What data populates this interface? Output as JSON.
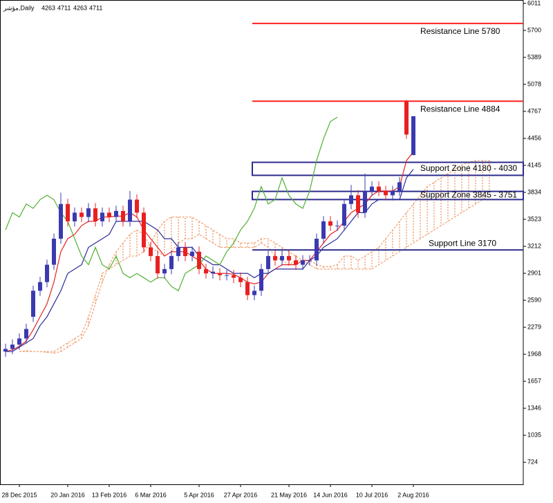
{
  "chart_data": {
    "type": "candlestick",
    "symbol": "مؤشر,Daily",
    "header_ohlc": [
      4263,
      4711,
      4263,
      4711
    ],
    "categories": [
      null,
      null,
      "28 Dec 2015",
      null,
      null,
      null,
      null,
      null,
      null,
      "20 Jan 2016",
      null,
      null,
      null,
      null,
      null,
      "13 Feb 2016",
      null,
      null,
      null,
      null,
      null,
      "6 Mar 2016",
      null,
      null,
      null,
      null,
      null,
      null,
      "5 Apr 2016",
      null,
      null,
      null,
      null,
      null,
      "27 Apr 2016",
      null,
      null,
      null,
      null,
      null,
      null,
      "21 May 2016",
      null,
      null,
      null,
      null,
      null,
      "14 Jun 2016",
      null,
      null,
      null,
      null,
      null,
      "10 Jul 2016",
      null,
      null,
      null,
      null,
      null,
      "2 Aug 2016",
      null,
      null,
      null,
      null,
      null,
      null,
      null,
      null,
      null,
      null,
      null
    ],
    "open": [
      2000,
      2030,
      2080,
      2150,
      2400,
      2700,
      2800,
      3000,
      3300,
      3700,
      3500,
      3600,
      3550,
      3650,
      3500,
      3600,
      3550,
      3620,
      3500,
      3750,
      3600,
      3200,
      3100,
      2900,
      2950,
      3100,
      3200,
      3100,
      3150,
      2950,
      2900,
      2900,
      2880,
      2880,
      2850,
      2800,
      2650,
      2700,
      2950,
      3100,
      3050,
      3100,
      3050,
      3000,
      3050,
      3050,
      3300,
      3500,
      3450,
      3450,
      3700,
      3800,
      3600,
      3850,
      3900,
      3850,
      3800,
      3850,
      4880,
      4263,
      null,
      null,
      null,
      null,
      null,
      null,
      null,
      null,
      null,
      null,
      null
    ],
    "high": [
      2090,
      2140,
      2210,
      2320,
      2760,
      2860,
      3060,
      3360,
      3830,
      3760,
      3660,
      3660,
      3710,
      3710,
      3660,
      3660,
      3680,
      3680,
      3850,
      3810,
      3660,
      3260,
      3160,
      3010,
      3160,
      3260,
      3260,
      3210,
      3210,
      3010,
      2980,
      2960,
      2940,
      2940,
      2910,
      2860,
      2760,
      3010,
      3160,
      3160,
      3160,
      3160,
      3110,
      3110,
      3110,
      3360,
      3560,
      3560,
      3510,
      3760,
      3920,
      3860,
      4050,
      3960,
      3960,
      3910,
      3910,
      4010,
      4900,
      4711,
      null,
      null,
      null,
      null,
      null,
      null,
      null,
      null,
      null,
      null,
      null
    ],
    "low": [
      1940,
      1970,
      2020,
      2090,
      2340,
      2640,
      2740,
      2940,
      3240,
      3440,
      3440,
      3490,
      3490,
      3440,
      3440,
      3490,
      3490,
      3440,
      3440,
      3540,
      3140,
      3040,
      2840,
      2840,
      2890,
      3040,
      3040,
      3040,
      2890,
      2840,
      2840,
      2820,
      2820,
      2790,
      2740,
      2590,
      2590,
      2640,
      2890,
      2990,
      2990,
      2990,
      2940,
      2940,
      2990,
      2990,
      3240,
      3390,
      3390,
      3390,
      3640,
      3540,
      3540,
      3790,
      3790,
      3740,
      3740,
      3790,
      4450,
      4263,
      null,
      null,
      null,
      null,
      null,
      null,
      null,
      null,
      null,
      null,
      null
    ],
    "close": [
      2030,
      2080,
      2150,
      2260,
      2700,
      2800,
      3000,
      3300,
      3700,
      3500,
      3600,
      3550,
      3650,
      3500,
      3600,
      3550,
      3620,
      3500,
      3750,
      3600,
      3200,
      3100,
      2900,
      2950,
      3100,
      3200,
      3100,
      3150,
      2950,
      2900,
      2920,
      2880,
      2880,
      2850,
      2800,
      2650,
      2700,
      2950,
      3100,
      3050,
      3100,
      3050,
      3000,
      3050,
      3050,
      3300,
      3500,
      3450,
      3450,
      3700,
      3800,
      3600,
      3850,
      3900,
      3850,
      3800,
      3850,
      3950,
      4500,
      4711,
      null,
      null,
      null,
      null,
      null,
      null,
      null,
      null,
      null,
      null,
      null
    ],
    "up_color": "#3a3ab0",
    "down_color": "#e82020",
    "lines": [
      {
        "color": "#e82020",
        "values": [
          2000,
          2020,
          2060,
          2120,
          2250,
          2400,
          2550,
          2800,
          3150,
          3300,
          3350,
          3450,
          3500,
          3500,
          3550,
          3550,
          3560,
          3560,
          3600,
          3550,
          3400,
          3300,
          3200,
          3100,
          3150,
          3150,
          3150,
          3100,
          3050,
          2950,
          2900,
          2900,
          2900,
          2890,
          2850,
          2800,
          2780,
          2800,
          2900,
          2950,
          3000,
          3000,
          3000,
          3050,
          3050,
          3150,
          3250,
          3350,
          3400,
          3500,
          3600,
          3650,
          3700,
          3800,
          3850,
          3850,
          3850,
          3900,
          4200,
          4300,
          null,
          null,
          null,
          null,
          null,
          null,
          null,
          null,
          null,
          null,
          null
        ]
      },
      {
        "color": "#2a2a9a",
        "values": [
          2000,
          2000,
          2050,
          2100,
          2150,
          2300,
          2400,
          2550,
          2700,
          2900,
          2950,
          3000,
          3200,
          3250,
          3300,
          3350,
          3500,
          3500,
          3500,
          3500,
          3500,
          3450,
          3400,
          3300,
          3300,
          3200,
          3200,
          3200,
          3100,
          3050,
          3000,
          3000,
          2950,
          2900,
          2900,
          2900,
          2850,
          2900,
          2900,
          2950,
          2950,
          2950,
          2950,
          2950,
          3050,
          3100,
          3200,
          3250,
          3300,
          3400,
          3500,
          3600,
          3600,
          3700,
          3750,
          3750,
          3750,
          3750,
          4000,
          4100,
          null,
          null,
          null,
          null,
          null,
          null,
          null,
          null,
          null,
          null,
          null
        ]
      },
      {
        "color": "#4fb030",
        "values": [
          3400,
          3600,
          3550,
          3700,
          3650,
          3750,
          3800,
          3750,
          3600,
          3500,
          3300,
          3100,
          3000,
          3200,
          3000,
          2950,
          3100,
          2900,
          2850,
          2900,
          2850,
          2800,
          2850,
          2850,
          2750,
          2700,
          2900,
          2950,
          3000,
          3100,
          3050,
          3000,
          3150,
          3250,
          3400,
          3500,
          3650,
          3900,
          3700,
          3750,
          4000,
          3800,
          3700,
          3650,
          3850,
          4200,
          4450,
          4650,
          4700,
          null,
          null,
          null,
          null,
          null,
          null,
          null,
          null,
          null,
          null,
          null,
          null,
          null,
          null,
          null,
          null,
          null,
          null,
          null,
          null,
          null,
          null
        ]
      }
    ],
    "cloud": {
      "color": "#f0a070",
      "span_a": [
        null,
        null,
        2000,
        2010,
        2000,
        2000,
        1990,
        1980,
        2000,
        2050,
        2100,
        2150,
        2300,
        2550,
        2800,
        3000,
        3150,
        3250,
        3350,
        3400,
        3350,
        3200,
        3150,
        3100,
        3150,
        3250,
        3300,
        3300,
        3350,
        3300,
        3250,
        3200,
        3200,
        3200,
        3200,
        3200,
        3200,
        3250,
        3200,
        3100,
        3050,
        3000,
        3050,
        3050,
        3050,
        3000,
        2980,
        2980,
        3000,
        3100,
        3100,
        3050,
        3100,
        3150,
        3200,
        3300,
        3400,
        3500,
        3600,
        3700,
        3800,
        3900,
        3950,
        4000,
        4050,
        4100,
        4150,
        4180,
        4200,
        4200,
        4200
      ],
      "span_b": [
        null,
        null,
        2000,
        2000,
        2000,
        2000,
        2000,
        2000,
        2050,
        2100,
        2150,
        2200,
        2400,
        2650,
        2900,
        2950,
        3000,
        3050,
        3100,
        3100,
        3150,
        3250,
        3400,
        3500,
        3550,
        3550,
        3550,
        3550,
        3500,
        3450,
        3400,
        3350,
        3300,
        3300,
        3250,
        3250,
        3250,
        3300,
        3300,
        3250,
        3200,
        3150,
        3100,
        3050,
        3000,
        2950,
        2950,
        2950,
        2950,
        2950,
        2950,
        2950,
        2950,
        2950,
        3000,
        3050,
        3100,
        3150,
        3200,
        3250,
        3300,
        3350,
        3400,
        3450,
        3500,
        3550,
        3600,
        3650,
        3700,
        3750,
        3800
      ]
    },
    "levels": [
      {
        "label": "Resistance Line 5780",
        "value": 5780,
        "color": "#ff2020",
        "label_side": "below"
      },
      {
        "label": "Resistance Line 4884",
        "value": 4884,
        "color": "#ff2020",
        "label_side": "below"
      },
      {
        "label": "Support Line 3170",
        "value": 3170,
        "color": "#2b2b8c",
        "label_side": "above"
      }
    ],
    "zones": [
      {
        "label": "Support Zone 4180 - 4030",
        "high": 4180,
        "low": 4030,
        "color": "#2b2b8c"
      },
      {
        "label": "Support Zone 3845 - 3751",
        "high": 3845,
        "low": 3751,
        "color": "#2b2b8c"
      }
    ],
    "ylim": [
      470,
      6050
    ],
    "yticks": [
      6011,
      5700,
      5389,
      5078,
      4767,
      4456,
      4145,
      3834,
      3523,
      3212,
      2901,
      2590,
      2279,
      1968,
      1657,
      1346,
      1035,
      724
    ]
  }
}
